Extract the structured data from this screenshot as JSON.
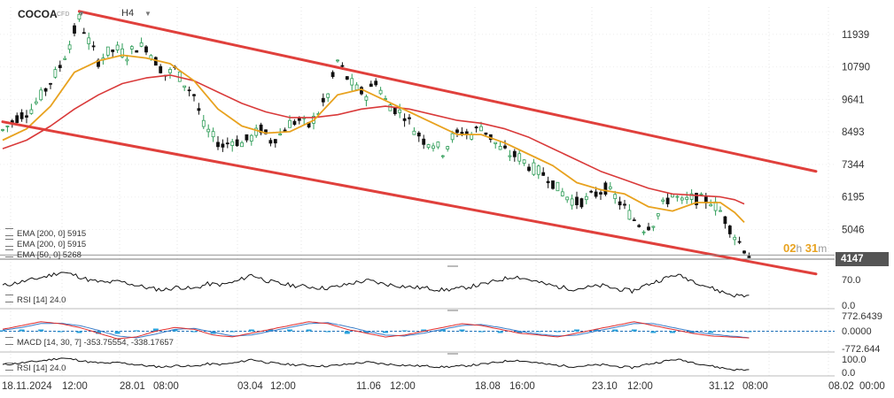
{
  "header": {
    "symbol": "COCOA",
    "instrument_type": "CFD",
    "timeframe": "H4"
  },
  "timer": {
    "hours": "02",
    "h_unit": "h",
    "minutes": "31",
    "m_unit": "m"
  },
  "colors": {
    "bull": "#2e9c57",
    "bear": "#111111",
    "ema200": "#d93a3a",
    "ema50": "#e8a21f",
    "channel": "#e0403c",
    "rsi": "#111111",
    "macd": "#e02d2d",
    "signal": "#3a7cc7",
    "hist": "#2aa3dc"
  },
  "chart_data": [
    {
      "type": "candlestick",
      "panel": "price",
      "x_ticks": [
        "18.11.2024",
        "12:00",
        "28.01",
        "08:00",
        "03.04",
        "12:00",
        "11.06",
        "12:00",
        "18.08",
        "16:00",
        "23.10",
        "12:00",
        "31.12",
        "08:00",
        "08.02",
        "00:00"
      ],
      "y_ticks": [
        11939,
        10790,
        9641,
        8493,
        7344,
        6195,
        5046
      ],
      "ylim": [
        4000,
        12900
      ],
      "last_price": "4147",
      "price_series": [
        [
          0,
          8550
        ],
        [
          3,
          9000
        ],
        [
          6,
          9300
        ],
        [
          9,
          10000
        ],
        [
          12,
          10800
        ],
        [
          14,
          11600
        ],
        [
          16,
          12500
        ],
        [
          18,
          11700
        ],
        [
          20,
          11000
        ],
        [
          22,
          11300
        ],
        [
          24,
          11400
        ],
        [
          26,
          11200
        ],
        [
          28,
          11500
        ],
        [
          30,
          11500
        ],
        [
          32,
          11000
        ],
        [
          34,
          10500
        ],
        [
          36,
          10700
        ],
        [
          38,
          10200
        ],
        [
          40,
          9800
        ],
        [
          42,
          8700
        ],
        [
          44,
          8300
        ],
        [
          46,
          8000
        ],
        [
          48,
          8200
        ],
        [
          50,
          8100
        ],
        [
          52,
          8300
        ],
        [
          54,
          8600
        ],
        [
          56,
          8200
        ],
        [
          58,
          8400
        ],
        [
          60,
          8800
        ],
        [
          62,
          8900
        ],
        [
          64,
          8700
        ],
        [
          66,
          9200
        ],
        [
          68,
          9800
        ],
        [
          70,
          11000
        ],
        [
          72,
          10400
        ],
        [
          74,
          10000
        ],
        [
          76,
          9800
        ],
        [
          78,
          10300
        ],
        [
          80,
          9600
        ],
        [
          82,
          9300
        ],
        [
          84,
          9100
        ],
        [
          86,
          8600
        ],
        [
          88,
          8200
        ],
        [
          90,
          8100
        ],
        [
          92,
          7800
        ],
        [
          94,
          8300
        ],
        [
          96,
          8500
        ],
        [
          98,
          8400
        ],
        [
          100,
          8700
        ],
        [
          102,
          8300
        ],
        [
          104,
          7900
        ],
        [
          106,
          7700
        ],
        [
          108,
          7600
        ],
        [
          110,
          7300
        ],
        [
          112,
          7100
        ],
        [
          114,
          6900
        ],
        [
          116,
          6500
        ],
        [
          118,
          6200
        ],
        [
          120,
          6000
        ],
        [
          122,
          6100
        ],
        [
          124,
          6300
        ],
        [
          126,
          6500
        ],
        [
          128,
          6200
        ],
        [
          130,
          5800
        ],
        [
          132,
          5400
        ],
        [
          134,
          5100
        ],
        [
          136,
          5300
        ],
        [
          138,
          5900
        ],
        [
          140,
          6300
        ],
        [
          142,
          6000
        ],
        [
          144,
          6150
        ],
        [
          146,
          6100
        ],
        [
          148,
          6050
        ],
        [
          150,
          5700
        ],
        [
          152,
          5100
        ],
        [
          154,
          4600
        ],
        [
          156,
          4147
        ]
      ],
      "ema_50": [
        [
          0,
          8200
        ],
        [
          5,
          8600
        ],
        [
          10,
          9400
        ],
        [
          15,
          10600
        ],
        [
          20,
          11000
        ],
        [
          25,
          11200
        ],
        [
          30,
          11100
        ],
        [
          35,
          10900
        ],
        [
          40,
          10300
        ],
        [
          45,
          9300
        ],
        [
          50,
          8700
        ],
        [
          55,
          8450
        ],
        [
          60,
          8500
        ],
        [
          65,
          8900
        ],
        [
          70,
          9800
        ],
        [
          75,
          10000
        ],
        [
          80,
          9600
        ],
        [
          85,
          9200
        ],
        [
          90,
          8800
        ],
        [
          95,
          8400
        ],
        [
          100,
          8400
        ],
        [
          105,
          8100
        ],
        [
          110,
          7700
        ],
        [
          115,
          7300
        ],
        [
          120,
          6700
        ],
        [
          125,
          6450
        ],
        [
          130,
          6300
        ],
        [
          135,
          5850
        ],
        [
          140,
          5700
        ],
        [
          145,
          6000
        ],
        [
          150,
          6000
        ],
        [
          153,
          5650
        ],
        [
          155,
          5300
        ]
      ],
      "ema_200": [
        [
          0,
          7900
        ],
        [
          5,
          8200
        ],
        [
          10,
          8700
        ],
        [
          15,
          9300
        ],
        [
          20,
          9800
        ],
        [
          25,
          10200
        ],
        [
          30,
          10400
        ],
        [
          35,
          10500
        ],
        [
          40,
          10300
        ],
        [
          45,
          9900
        ],
        [
          50,
          9500
        ],
        [
          55,
          9200
        ],
        [
          60,
          9000
        ],
        [
          65,
          9000
        ],
        [
          70,
          9100
        ],
        [
          75,
          9300
        ],
        [
          80,
          9400
        ],
        [
          85,
          9300
        ],
        [
          90,
          9100
        ],
        [
          95,
          8900
        ],
        [
          100,
          8800
        ],
        [
          105,
          8600
        ],
        [
          110,
          8300
        ],
        [
          115,
          7900
        ],
        [
          120,
          7500
        ],
        [
          125,
          7100
        ],
        [
          130,
          6800
        ],
        [
          135,
          6500
        ],
        [
          140,
          6300
        ],
        [
          145,
          6250
        ],
        [
          150,
          6200
        ],
        [
          153,
          6100
        ],
        [
          155,
          5950
        ]
      ],
      "channel_upper": [
        [
          16,
          12750
        ],
        [
          155,
          7650
        ]
      ],
      "channel_lower": [
        [
          0,
          8850
        ],
        [
          155,
          3950
        ]
      ],
      "legend": [
        {
          "label": "EMA [200, 0] 5915"
        },
        {
          "label": "EMA [200, 0] 5915"
        },
        {
          "label": "EMA [50, 0] 5268"
        }
      ]
    },
    {
      "type": "line",
      "panel": "rsi-1",
      "name": "RSI [14] 24.0",
      "y_ticks": [
        70.0,
        0.0
      ],
      "ylim": [
        0,
        100
      ],
      "values": [
        48,
        55,
        62,
        70,
        80,
        72,
        60,
        55,
        58,
        50,
        42,
        38,
        45,
        40,
        52,
        50,
        58,
        74,
        60,
        52,
        48,
        45,
        42,
        46,
        55,
        60,
        52,
        48,
        44,
        42,
        38,
        40,
        46,
        52,
        62,
        70,
        62,
        52,
        45,
        40,
        44,
        48,
        40,
        35,
        50,
        62,
        74,
        62,
        48,
        35,
        25,
        24
      ]
    },
    {
      "type": "line",
      "panel": "macd",
      "name": "MACD [14, 30, 7] -353.75554, -338.17657",
      "y_ticks": [
        772.6439,
        0.0,
        -772.644
      ],
      "ylim": [
        -1000,
        1000
      ],
      "macd": [
        100,
        300,
        500,
        400,
        200,
        -100,
        -400,
        -300,
        0,
        200,
        100,
        -200,
        -300,
        -100,
        100,
        300,
        500,
        400,
        100,
        -100,
        -300,
        -200,
        0,
        200,
        400,
        300,
        100,
        -100,
        -200,
        -300,
        -100,
        100,
        300,
        500,
        300,
        100,
        -100,
        -250,
        -300,
        -350
      ],
      "signal": [
        50,
        200,
        400,
        420,
        300,
        50,
        -250,
        -350,
        -150,
        100,
        150,
        -50,
        -250,
        -200,
        0,
        200,
        400,
        450,
        250,
        0,
        -200,
        -250,
        -100,
        100,
        300,
        350,
        200,
        0,
        -150,
        -250,
        -200,
        0,
        200,
        400,
        400,
        200,
        0,
        -150,
        -250,
        -338
      ]
    },
    {
      "type": "line",
      "panel": "rsi-2",
      "name": "RSI [14] 24.0",
      "y_ticks": [
        100.0,
        0.0
      ],
      "ylim": [
        0,
        100
      ],
      "values": [
        48,
        55,
        62,
        70,
        80,
        72,
        60,
        55,
        58,
        50,
        42,
        38,
        45,
        40,
        52,
        50,
        58,
        74,
        60,
        52,
        48,
        45,
        42,
        46,
        55,
        60,
        52,
        48,
        44,
        42,
        38,
        40,
        46,
        52,
        62,
        70,
        62,
        52,
        45,
        40,
        44,
        48,
        40,
        35,
        50,
        62,
        74,
        62,
        48,
        35,
        25,
        24
      ]
    }
  ]
}
